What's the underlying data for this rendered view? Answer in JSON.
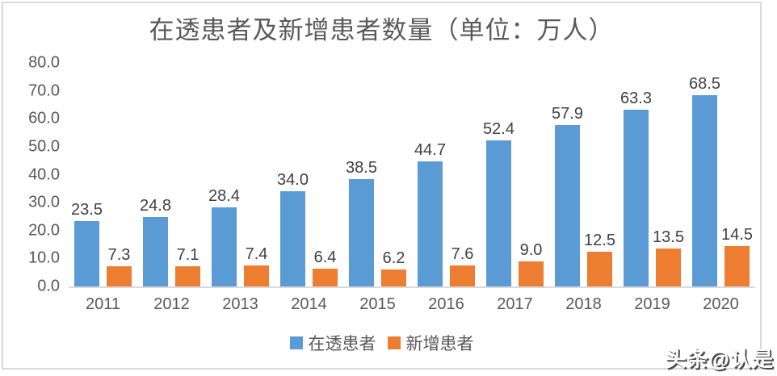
{
  "title": "在透患者及新增患者数量（单位：万人）",
  "watermark": "头条@认是",
  "colors": {
    "series1": "#5B9BD5",
    "series2": "#ED7D31",
    "axis": "#D9D9D9",
    "title_text": "#595959",
    "data_label_text": "#404040"
  },
  "legend": {
    "items": [
      {
        "label": "在透患者",
        "color": "#5B9BD5"
      },
      {
        "label": "新增患者",
        "color": "#ED7D31"
      }
    ]
  },
  "chart_data": {
    "type": "bar",
    "title": "在透患者及新增患者数量（单位：万人）",
    "categories": [
      "2011",
      "2012",
      "2013",
      "2014",
      "2015",
      "2016",
      "2017",
      "2018",
      "2019",
      "2020"
    ],
    "series": [
      {
        "name": "在透患者",
        "color": "#5B9BD5",
        "values": [
          23.5,
          24.8,
          28.4,
          34.0,
          38.5,
          44.7,
          52.4,
          57.9,
          63.3,
          68.5
        ]
      },
      {
        "name": "新增患者",
        "color": "#ED7D31",
        "values": [
          7.3,
          7.1,
          7.4,
          6.4,
          6.2,
          7.6,
          9.0,
          12.5,
          13.5,
          14.5
        ]
      }
    ],
    "xlabel": "",
    "ylabel": "",
    "ylim": [
      0,
      80
    ],
    "ytick_step": 10,
    "yticks": [
      "80.0",
      "70.0",
      "60.0",
      "50.0",
      "40.0",
      "30.0",
      "20.0",
      "10.0",
      "0.0"
    ],
    "grid": false,
    "data_labels": true,
    "data_label_decimals": 1,
    "legend_position": "bottom"
  }
}
